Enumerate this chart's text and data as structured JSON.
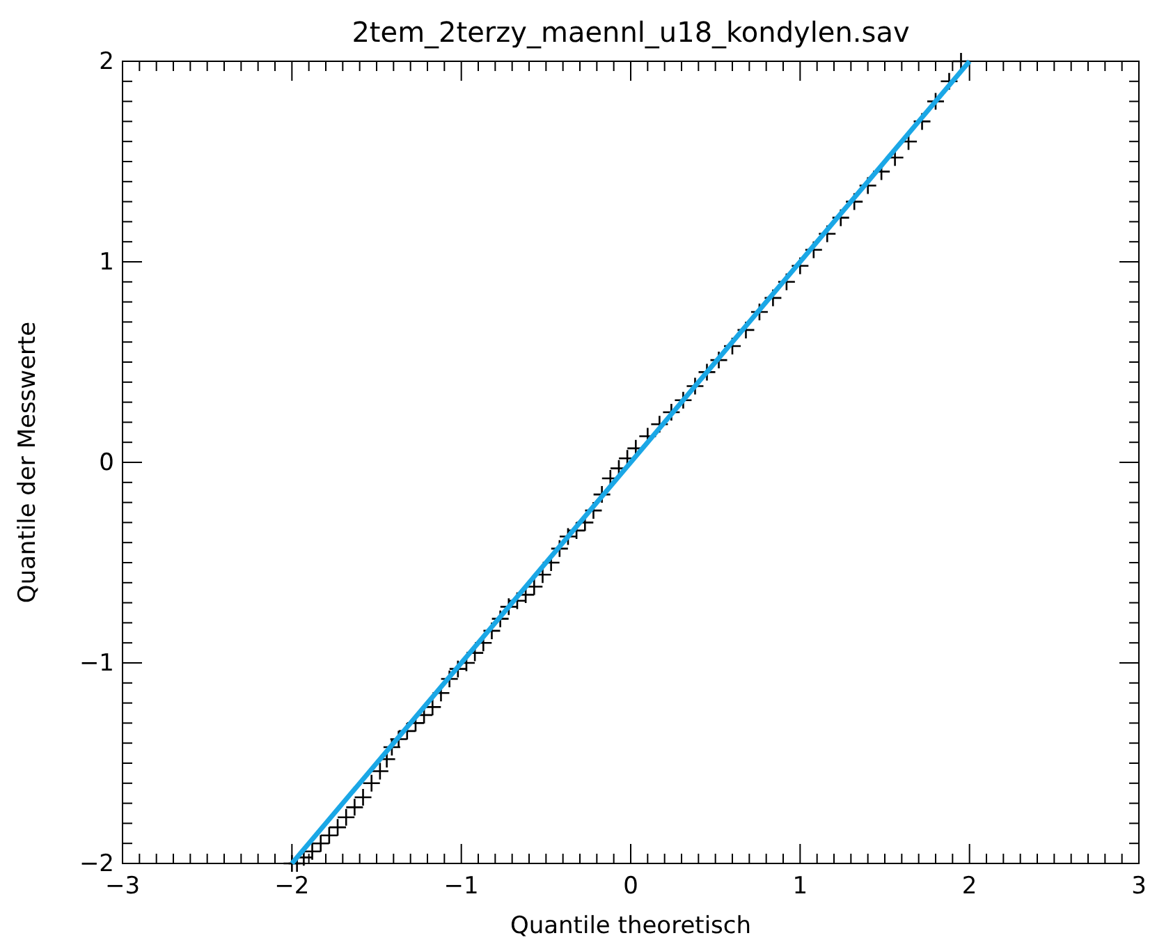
{
  "chart_data": {
    "type": "scatter",
    "title": "2tem_2terzy_maennl_u18_kondylen.sav",
    "xlabel": "Quantile theoretisch",
    "ylabel": "Quantile der Messwerte",
    "xlim": [
      -3,
      3
    ],
    "ylim": [
      -2,
      2
    ],
    "xticks": [
      -3,
      -2,
      -1,
      0,
      1,
      2,
      3
    ],
    "yticks": [
      -2,
      -1,
      0,
      1,
      2
    ],
    "grid": false,
    "series": [
      {
        "marker": "cross",
        "color": "#000000",
        "x": [
          -2.0,
          -1.97,
          -1.93,
          -1.88,
          -1.83,
          -1.78,
          -1.73,
          -1.68,
          -1.63,
          -1.58,
          -1.53,
          -1.48,
          -1.44,
          -1.41,
          -1.37,
          -1.32,
          -1.27,
          -1.22,
          -1.17,
          -1.12,
          -1.07,
          -1.02,
          -0.97,
          -0.92,
          -0.87,
          -0.82,
          -0.77,
          -0.72,
          -0.67,
          -0.62,
          -0.57,
          -0.52,
          -0.47,
          -0.42,
          -0.37,
          -0.32,
          -0.27,
          -0.22,
          -0.17,
          -0.12,
          -0.07,
          -0.02,
          0.03,
          0.1,
          0.17,
          0.24,
          0.31,
          0.38,
          0.45,
          0.52,
          0.6,
          0.68,
          0.76,
          0.84,
          0.92,
          1.0,
          1.08,
          1.16,
          1.24,
          1.32,
          1.4,
          1.48,
          1.56,
          1.64,
          1.72,
          1.8,
          1.88,
          1.95
        ],
        "values": [
          -2.0,
          -2.0,
          -1.97,
          -1.94,
          -1.9,
          -1.86,
          -1.82,
          -1.77,
          -1.72,
          -1.67,
          -1.6,
          -1.54,
          -1.48,
          -1.42,
          -1.38,
          -1.34,
          -1.3,
          -1.26,
          -1.22,
          -1.15,
          -1.08,
          -1.03,
          -1.0,
          -0.95,
          -0.9,
          -0.84,
          -0.78,
          -0.72,
          -0.69,
          -0.66,
          -0.62,
          -0.56,
          -0.5,
          -0.43,
          -0.37,
          -0.34,
          -0.3,
          -0.24,
          -0.16,
          -0.08,
          -0.03,
          0.02,
          0.07,
          0.13,
          0.19,
          0.25,
          0.31,
          0.38,
          0.45,
          0.51,
          0.58,
          0.66,
          0.75,
          0.82,
          0.9,
          0.98,
          1.06,
          1.14,
          1.22,
          1.3,
          1.38,
          1.45,
          1.52,
          1.6,
          1.7,
          1.8,
          1.9,
          2.0
        ]
      },
      {
        "type": "line",
        "marker": "none",
        "color": "#1aa7e6",
        "x": [
          -2,
          2
        ],
        "values": [
          -2,
          2
        ]
      }
    ]
  }
}
